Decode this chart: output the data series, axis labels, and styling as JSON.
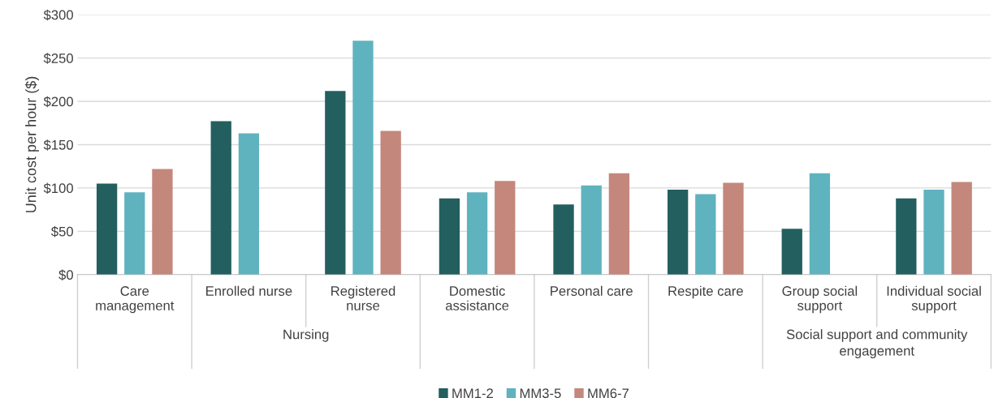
{
  "chart_data": {
    "type": "bar",
    "ylabel": "Unit cost per hour ($)",
    "categories": [
      "Care\nmanagement",
      "Enrolled nurse",
      "Registered\nnurse",
      "Domestic\nassistance",
      "Personal care",
      "Respite care",
      "Group social\nsupport",
      "Individual social\nsupport"
    ],
    "series": [
      {
        "name": "MM1-2",
        "color": "#235f5f",
        "values": [
          105,
          177,
          212,
          88,
          81,
          98,
          53,
          88
        ]
      },
      {
        "name": "MM3-5",
        "color": "#5fb3bf",
        "values": [
          95,
          163,
          270,
          95,
          103,
          93,
          117,
          98
        ]
      },
      {
        "name": "MM6-7",
        "color": "#c4877c",
        "values": [
          122,
          null,
          166,
          108,
          117,
          106,
          null,
          107
        ]
      }
    ],
    "ylim": [
      0,
      300
    ],
    "yticks": [
      {
        "value": 0,
        "label": "$0"
      },
      {
        "value": 50,
        "label": "$50"
      },
      {
        "value": 100,
        "label": "$100"
      },
      {
        "value": 150,
        "label": "$150"
      },
      {
        "value": 200,
        "label": "$200"
      },
      {
        "value": 250,
        "label": "$250"
      },
      {
        "value": 300,
        "label": "$300"
      }
    ],
    "grid": "y",
    "legend": "bottom",
    "annotations": [
      "Nursing",
      "Social support and community\nengagement"
    ]
  }
}
